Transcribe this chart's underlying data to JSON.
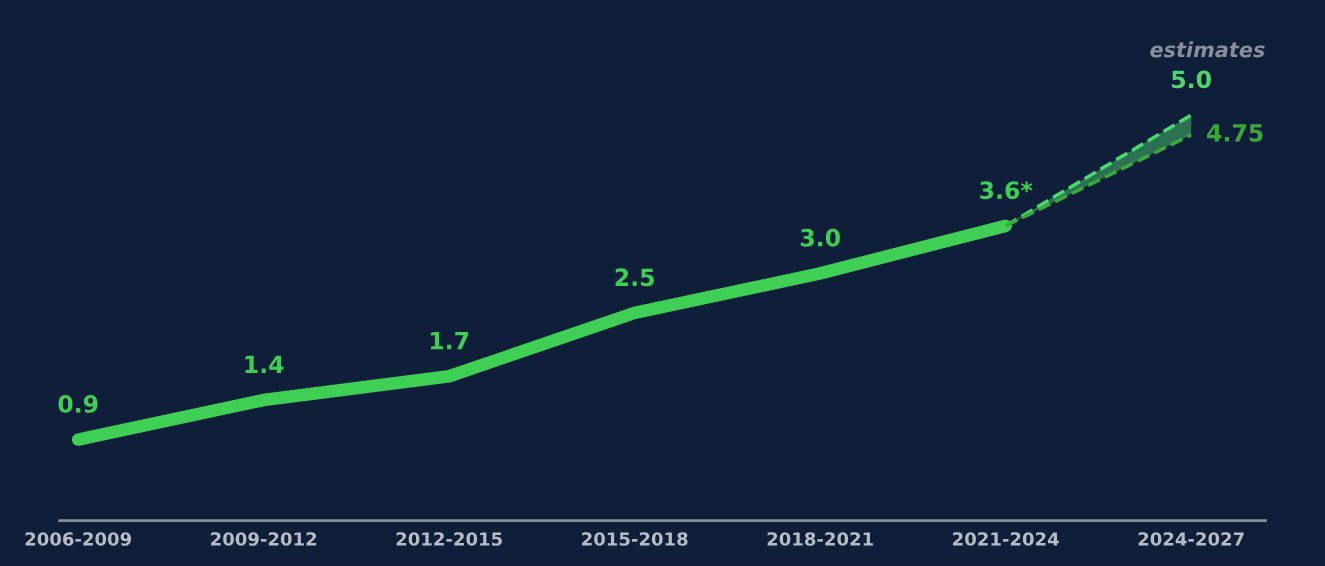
{
  "chart_data": {
    "type": "line",
    "categories": [
      "2006-2009",
      "2009-2012",
      "2012-2015",
      "2015-2018",
      "2018-2021",
      "2021-2024",
      "2024-2027"
    ],
    "series": [
      {
        "color": "#3fcf55",
        "values": [
          0.9,
          1.4,
          1.7,
          2.5,
          3.0,
          3.6,
          null
        ],
        "value_labels": [
          "0.9",
          "1.4",
          "1.7",
          "2.5",
          "3.0",
          "3.6*",
          null
        ],
        "line_style": "solid"
      },
      {
        "color": "#4bd86f",
        "values": [
          null,
          null,
          null,
          null,
          null,
          3.6,
          5.0
        ],
        "value_labels": [
          null,
          null,
          null,
          null,
          null,
          null,
          "5.0"
        ],
        "line_style": "dashed",
        "lower": [
          null,
          null,
          null,
          null,
          null,
          3.6,
          4.75
        ],
        "upper": [
          null,
          null,
          null,
          null,
          null,
          3.6,
          5.0
        ]
      },
      {
        "color": "#3aa93a",
        "values": [
          null,
          null,
          null,
          null,
          null,
          3.6,
          4.75
        ],
        "value_labels": [
          null,
          null,
          null,
          null,
          null,
          null,
          "4.75"
        ],
        "line_style": "dashed"
      }
    ],
    "annotations": [
      "estimates"
    ],
    "grid": false,
    "legend": false,
    "marker": "none"
  }
}
